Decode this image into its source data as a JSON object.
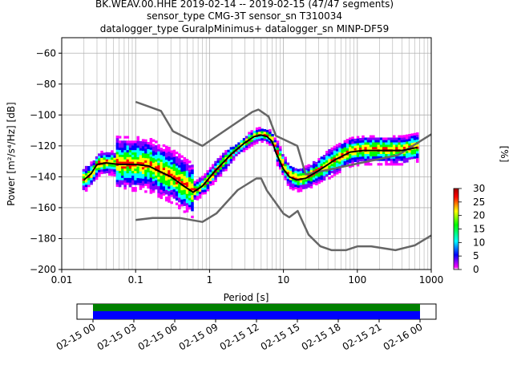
{
  "title": {
    "line1": "BK.WEAV.00.HHE   2019-02-14 -- 2019-02-15  (47/47 segments)",
    "line2": "sensor_type CMG-3T sensor_sn T310034",
    "line3": "datalogger_type GuralpMinimus+ datalogger_sn MINP-DF59"
  },
  "chart_data": [
    {
      "type": "heatmap",
      "title": "BK.WEAV.00.HHE   2019-02-14 -- 2019-02-15  (47/47 segments)",
      "xlabel": "Period [s]",
      "ylabel": "Power [m²/s⁴/Hz] [dB]",
      "x_scale": "log",
      "xlim": [
        0.01,
        1000
      ],
      "ylim": [
        -200,
        -50
      ],
      "grid": true,
      "x_ticks": [
        0.01,
        0.1,
        1,
        10,
        100,
        1000
      ],
      "x_tick_labels": [
        "0.01",
        "0.1",
        "1",
        "10",
        "100",
        "1000"
      ],
      "y_ticks": [
        -200,
        -180,
        -160,
        -140,
        -120,
        -100,
        -80,
        -60
      ],
      "y_tick_labels": [
        "−200",
        "−180",
        "−160",
        "−140",
        "−120",
        "−100",
        "−80",
        "−60"
      ],
      "colorbar": {
        "label": "[%]",
        "range": [
          0,
          30
        ],
        "ticks": [
          0,
          5,
          10,
          15,
          20,
          25,
          30
        ],
        "colors": [
          "#ffffff",
          "#ff00ff",
          "#0000ff",
          "#00ffff",
          "#00ff00",
          "#ffff00",
          "#ff0000",
          "#a00000"
        ]
      },
      "series": [
        {
          "name": "NHNM",
          "color": "#666666",
          "x": [
            0.1,
            0.22,
            0.32,
            0.8,
            3.8,
            4.6,
            6.3,
            7.9,
            15.4,
            20,
            354.8,
            1000
          ],
          "y": [
            -91.5,
            -97.4,
            -110.5,
            -120,
            -98,
            -96.5,
            -101,
            -113.5,
            -120,
            -138.5,
            -126,
            -112.5
          ]
        },
        {
          "name": "NLNM",
          "color": "#666666",
          "x": [
            0.1,
            0.17,
            0.4,
            0.8,
            1.24,
            2.4,
            4.3,
            5,
            6,
            10,
            12,
            15.6,
            21.9,
            31.6,
            45,
            70,
            101,
            154,
            328,
            600,
            1000
          ],
          "y": [
            -168,
            -166.7,
            -166.7,
            -169.2,
            -163.7,
            -148.6,
            -141.1,
            -141.1,
            -149,
            -163.8,
            -166.2,
            -162.1,
            -177.5,
            -185,
            -187.5,
            -187.5,
            -185,
            -185,
            -187.5,
            -184.4,
            -178
          ]
        },
        {
          "name": "mode",
          "color": "#000000",
          "x": [
            0.02,
            0.025,
            0.03,
            0.04,
            0.06,
            0.1,
            0.15,
            0.2,
            0.3,
            0.45,
            0.6,
            0.8,
            1.2,
            2,
            3,
            4,
            5,
            6,
            7,
            8,
            10,
            12,
            15,
            20,
            30,
            50,
            80,
            120,
            200,
            400,
            650
          ],
          "y": [
            -142,
            -138,
            -132,
            -131,
            -132,
            -132,
            -133,
            -136,
            -140,
            -146,
            -150,
            -146,
            -136,
            -125,
            -118,
            -114,
            -113,
            -114,
            -117,
            -125,
            -135,
            -140,
            -142,
            -141,
            -136,
            -129,
            -124,
            -123,
            -123,
            -123,
            -121
          ]
        }
      ],
      "time_axis": {
        "tick_labels": [
          "02-15 00",
          "02-15 03",
          "02-15 06",
          "02-15 09",
          "02-15 12",
          "02-15 15",
          "02-15 18",
          "02-15 21",
          "02-16 00"
        ],
        "range": [
          "02-15 00",
          "02-16 00"
        ],
        "bars": [
          {
            "color": "#008000"
          },
          {
            "color": "#0000ff"
          }
        ]
      }
    }
  ]
}
